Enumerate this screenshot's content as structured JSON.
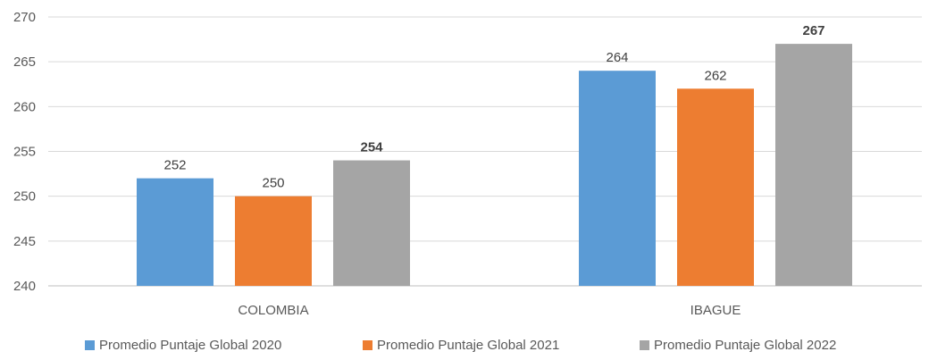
{
  "chart_data": {
    "type": "bar",
    "categories": [
      "COLOMBIA",
      "IBAGUE"
    ],
    "series": [
      {
        "name": "Promedio Puntaje Global 2020",
        "values": [
          252,
          264
        ],
        "color": "#5B9BD5",
        "label_bold": false
      },
      {
        "name": "Promedio Puntaje Global 2021",
        "values": [
          250,
          262
        ],
        "color": "#ED7D31",
        "label_bold": false
      },
      {
        "name": "Promedio Puntaje Global 2022",
        "values": [
          254,
          267
        ],
        "color": "#A5A5A5",
        "label_bold": true
      }
    ],
    "yticks": [
      240,
      245,
      250,
      255,
      260,
      265,
      270
    ],
    "ylim": [
      240,
      270
    ],
    "grid": true,
    "legend": "bottom",
    "title": "",
    "xlabel": "",
    "ylabel": ""
  }
}
